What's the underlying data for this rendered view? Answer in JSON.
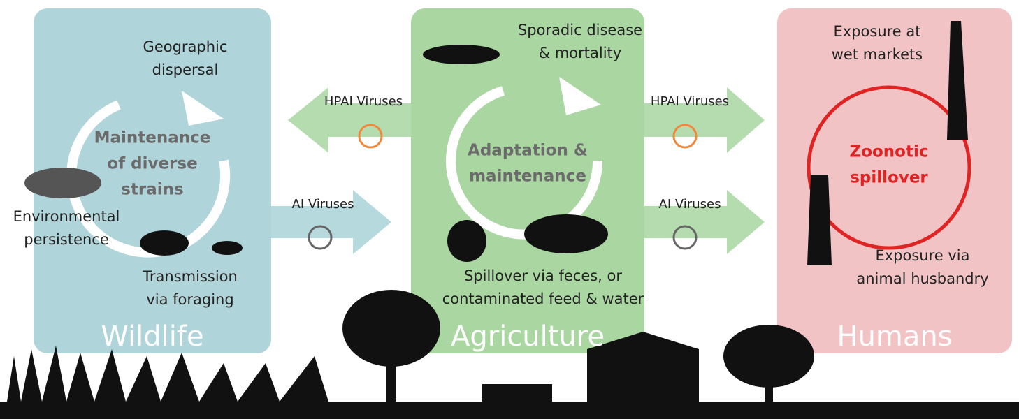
{
  "panels": [
    {
      "title": "Wildlife",
      "center": [
        "Maintenance",
        "of diverse",
        "strains"
      ],
      "notes": [
        [
          "Geographic",
          "dispersal"
        ],
        [
          "Environmental",
          "persistence"
        ],
        [
          "Transmission",
          "via foraging"
        ]
      ]
    },
    {
      "title": "Agriculture",
      "center": [
        "Adaptation &",
        "maintenance"
      ],
      "notes": [
        [
          "Sporadic disease",
          "& mortality"
        ],
        [
          "Spillover via feces, or",
          "contaminated feed & water"
        ]
      ]
    },
    {
      "title": "Humans",
      "center": [
        "Zoonotic",
        "spillover"
      ],
      "notes": [
        [
          "Exposure at",
          "wet markets"
        ],
        [
          "Exposure via",
          "animal husbandry"
        ]
      ]
    }
  ],
  "arrows": [
    {
      "label": "HPAI Viruses"
    },
    {
      "label": "AI Viruses"
    },
    {
      "label": "HPAI Viruses"
    },
    {
      "label": "AI Viruses"
    }
  ]
}
